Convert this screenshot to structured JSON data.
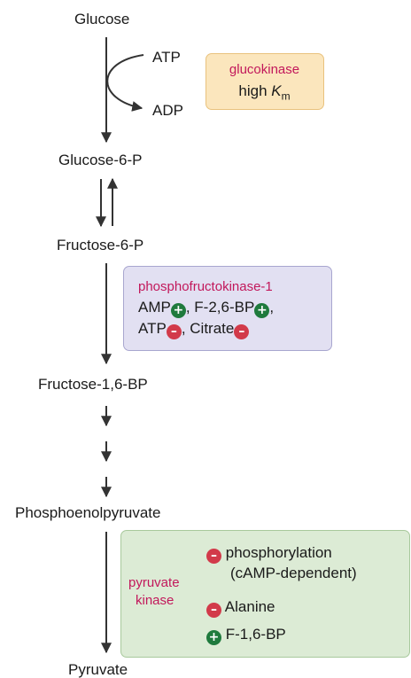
{
  "colors": {
    "enzyme_label": "#c2185b",
    "activator_badge": "#1f7a3d",
    "inhibitor_badge": "#d23a4a",
    "glucokinase_box_fill": "#fbe6bd",
    "glucokinase_box_border": "#e9c27d",
    "pfk1_box_fill": "#e2e0f2",
    "pfk1_box_border": "#a8a6cf",
    "pk_box_fill": "#dcebd5",
    "pk_box_border": "#a8c99c"
  },
  "metabolites": {
    "glucose": "Glucose",
    "glucose_6_p": "Glucose-6-P",
    "fructose_6_p": "Fructose-6-P",
    "fructose_1_6_bp": "Fructose-1,6-BP",
    "pep": "Phosphoenolpyruvate",
    "pyruvate": "Pyruvate"
  },
  "cofactors": {
    "atp": "ATP",
    "adp": "ADP"
  },
  "glucokinase": {
    "name": "glucokinase",
    "property_prefix": "high ",
    "property_symbol": "K",
    "property_subscript": "m"
  },
  "pfk1": {
    "name": "phosphofructokinase-1",
    "line1": [
      {
        "text": "AMP",
        "effect": "activator",
        "sep": ", "
      },
      {
        "text": "F-2,6-BP",
        "effect": "activator",
        "sep": ","
      }
    ],
    "line2": [
      {
        "text": "ATP",
        "effect": "inhibitor",
        "sep": ", "
      },
      {
        "text": "Citrate",
        "effect": "inhibitor",
        "sep": ""
      }
    ]
  },
  "pyruvate_kinase": {
    "name_line1": "pyruvate",
    "name_line2": "kinase",
    "regulators": [
      {
        "effect": "inhibitor",
        "text_line1": "phosphorylation",
        "text_line2": "(cAMP-dependent)"
      },
      {
        "effect": "inhibitor",
        "text_line1": "Alanine"
      },
      {
        "effect": "activator",
        "text_line1": "F-1,6-BP"
      }
    ]
  },
  "badge_symbols": {
    "activator": "+",
    "inhibitor": "–"
  }
}
